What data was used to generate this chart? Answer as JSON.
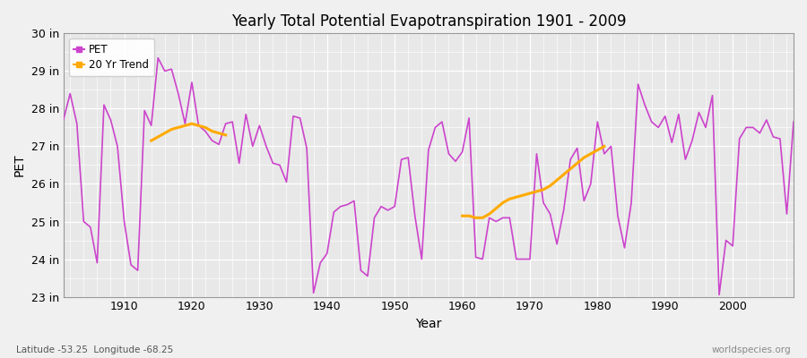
{
  "title": "Yearly Total Potential Evapotranspiration 1901 - 2009",
  "xlabel": "Year",
  "ylabel": "PET",
  "subtitle_left": "Latitude -53.25  Longitude -68.25",
  "watermark": "worldspecies.org",
  "fig_facecolor": "#f0f0f0",
  "plot_facecolor": "#e8e8e8",
  "pet_color": "#cc44cc",
  "trend_color": "#ffaa00",
  "ylim": [
    23,
    30
  ],
  "ytick_labels": [
    "23 in",
    "24 in",
    "25 in",
    "26 in",
    "27 in",
    "28 in",
    "29 in",
    "30 in"
  ],
  "ytick_values": [
    23,
    24,
    25,
    26,
    27,
    28,
    29,
    30
  ],
  "years": [
    1901,
    1902,
    1903,
    1904,
    1905,
    1906,
    1907,
    1908,
    1909,
    1910,
    1911,
    1912,
    1913,
    1914,
    1915,
    1916,
    1917,
    1918,
    1919,
    1920,
    1921,
    1922,
    1923,
    1924,
    1925,
    1926,
    1927,
    1928,
    1929,
    1930,
    1931,
    1932,
    1933,
    1934,
    1935,
    1936,
    1937,
    1938,
    1939,
    1940,
    1941,
    1942,
    1943,
    1944,
    1945,
    1946,
    1947,
    1948,
    1949,
    1950,
    1951,
    1952,
    1953,
    1954,
    1955,
    1956,
    1957,
    1958,
    1959,
    1960,
    1961,
    1962,
    1963,
    1964,
    1965,
    1966,
    1967,
    1968,
    1969,
    1970,
    1971,
    1972,
    1973,
    1974,
    1975,
    1976,
    1977,
    1978,
    1979,
    1980,
    1981,
    1982,
    1983,
    1984,
    1985,
    1986,
    1987,
    1988,
    1989,
    1990,
    1991,
    1992,
    1993,
    1994,
    1995,
    1996,
    1997,
    1998,
    1999,
    2000,
    2001,
    2002,
    2003,
    2004,
    2005,
    2006,
    2007,
    2008,
    2009
  ],
  "pet_values": [
    27.7,
    28.4,
    27.6,
    25.0,
    24.85,
    23.9,
    28.1,
    27.7,
    27.0,
    25.0,
    23.85,
    23.7,
    27.95,
    27.55,
    29.35,
    29.0,
    29.05,
    28.4,
    27.6,
    28.7,
    27.55,
    27.4,
    27.15,
    27.05,
    27.6,
    27.65,
    26.55,
    27.85,
    27.0,
    27.55,
    27.0,
    26.55,
    26.5,
    26.05,
    27.8,
    27.75,
    26.95,
    23.1,
    23.9,
    24.15,
    25.25,
    25.4,
    25.45,
    25.55,
    23.7,
    23.55,
    25.1,
    25.4,
    25.3,
    25.4,
    26.65,
    26.7,
    25.15,
    24.0,
    26.9,
    27.5,
    27.65,
    26.8,
    26.6,
    26.85,
    27.75,
    24.05,
    24.0,
    25.1,
    25.0,
    25.1,
    25.1,
    24.0,
    24.0,
    24.0,
    26.8,
    25.5,
    25.2,
    24.4,
    25.3,
    26.65,
    26.95,
    25.55,
    26.0,
    27.65,
    26.8,
    27.0,
    25.15,
    24.3,
    25.5,
    28.65,
    28.1,
    27.65,
    27.5,
    27.8,
    27.1,
    27.85,
    26.65,
    27.15,
    27.9,
    27.5,
    28.35,
    23.05,
    24.5,
    24.35,
    27.2,
    27.5,
    27.5,
    27.35,
    27.7,
    27.25,
    27.2,
    25.2,
    27.65
  ],
  "trend_seg1_years": [
    1914,
    1915,
    1916,
    1917,
    1918,
    1919,
    1920,
    1921,
    1922,
    1923,
    1924,
    1925
  ],
  "trend_seg1_values": [
    27.15,
    27.25,
    27.35,
    27.45,
    27.5,
    27.55,
    27.6,
    27.55,
    27.5,
    27.4,
    27.35,
    27.3
  ],
  "trend_seg2_years": [
    1960,
    1961,
    1962,
    1963,
    1964,
    1965,
    1966,
    1967,
    1968,
    1969,
    1970,
    1971,
    1972,
    1973,
    1974,
    1975,
    1976,
    1977,
    1978,
    1979,
    1980,
    1981
  ],
  "trend_seg2_values": [
    25.15,
    25.15,
    25.1,
    25.1,
    25.2,
    25.35,
    25.5,
    25.6,
    25.65,
    25.7,
    25.75,
    25.8,
    25.85,
    25.95,
    26.1,
    26.25,
    26.4,
    26.55,
    26.7,
    26.8,
    26.9,
    27.0
  ]
}
